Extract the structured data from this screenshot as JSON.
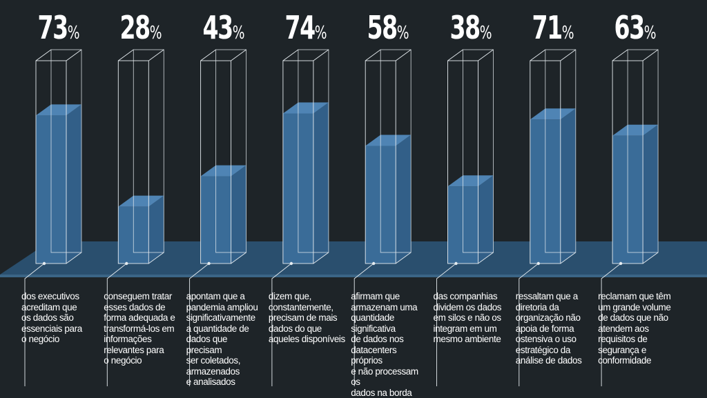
{
  "colors": {
    "background": "#1e2428",
    "platform": "#2a4f6e",
    "liquid": "#3a6c98",
    "liquid_top": "#4f84b4",
    "outline": "#e6ecf0",
    "text": "#ffffff"
  },
  "chart_data": {
    "type": "bar",
    "unit": "%",
    "title": "",
    "xlabel": "",
    "ylabel": "",
    "ylim": [
      0,
      100
    ],
    "grid": false,
    "categories": [
      "dos executivos acreditam que os dados são essenciais para o negócio",
      "conseguem tratar esses dados de forma adequada e transformá-los em informações relevantes para o negócio",
      "apontam que a pandemia ampliou significativamente a quantidade de dados que precisam ser coletados, armazenados e analisados",
      "dizem que, constantemente, precisam de mais dados do que aqueles disponíveis",
      "afirmam que armazenam uma quantidade significativa de dados nos datacenters próprios e não processam os dados na borda",
      "das companhias dividem os dados em silos e não os integram em um mesmo ambiente",
      "ressaltam que a diretoria da organização não apoia de forma ostensiva o uso estratégico da análise de dados",
      "reclamam que têm um grande volume de dados que não atendem aos requisitos de segurança e conformidade"
    ],
    "values": [
      73,
      28,
      43,
      74,
      58,
      38,
      71,
      63
    ],
    "items": [
      {
        "value": "73",
        "description": "dos executivos\nacreditam que\nos dados são\nessenciais para\no negócio"
      },
      {
        "value": "28",
        "description": "conseguem tratar\nesses dados de\nforma adequada e\ntransformá-los em\ninformações\nrelevantes para\no negócio"
      },
      {
        "value": "43",
        "description": "apontam que a\npandemia ampliou\nsignificativamente\na quantidade de\ndados que precisam\nser coletados,\narmazenados\ne analisados"
      },
      {
        "value": "74",
        "description": "dizem que,\nconstantemente,\nprecisam de mais\ndados do que\naqueles disponíveis"
      },
      {
        "value": "58",
        "description": "afirmam que\narmazenam uma\nquantidade\nsignificativa\nde dados nos\ndatacenters próprios\ne não processam os\ndados na borda"
      },
      {
        "value": "38",
        "description": "das companhias\ndividem os dados\nem silos e não os\nintegram em um\nmesmo ambiente"
      },
      {
        "value": "71",
        "description": "ressaltam que a\ndiretoria da\norganização não\napoia de forma\nostensiva o uso\nestratégico da\nanálise de dados"
      },
      {
        "value": "63",
        "description": "reclamam que têm\num grande volume\nde dados que não\natendem aos\nrequisitos de\nsegurança e\nconformidade"
      }
    ]
  }
}
